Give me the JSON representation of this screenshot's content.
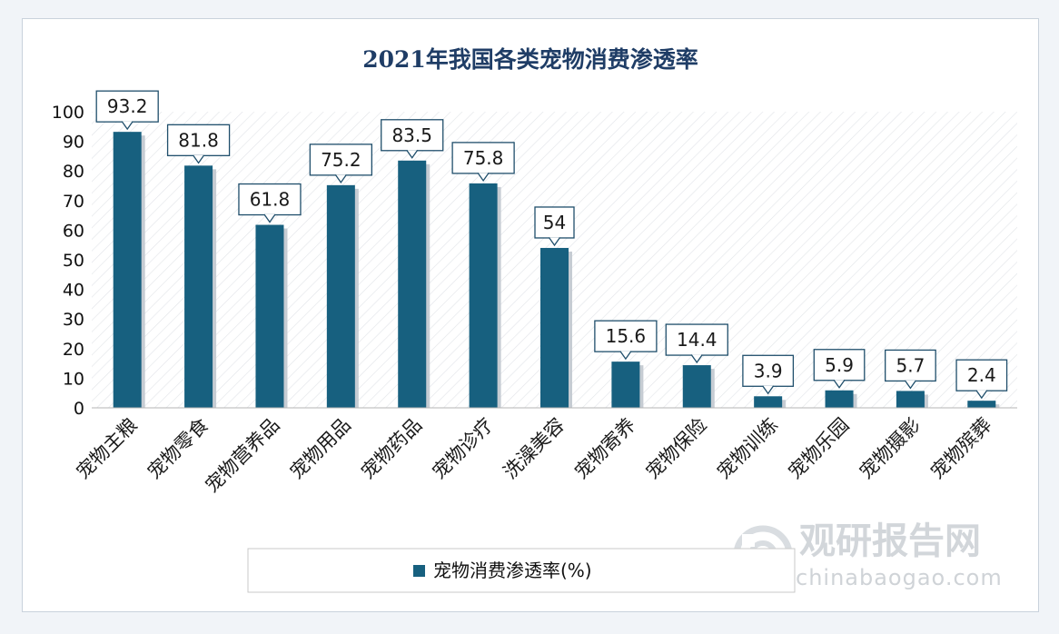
{
  "chart_data": {
    "type": "bar",
    "title": "2021年我国各类宠物消费渗透率",
    "categories": [
      "宠物主粮",
      "宠物零食",
      "宠物营养品",
      "宠物用品",
      "宠物药品",
      "宠物诊疗",
      "洗澡美容",
      "宠物寄养",
      "宠物保险",
      "宠物训练",
      "宠物乐园",
      "宠物摄影",
      "宠物殡葬"
    ],
    "series": [
      {
        "name": "宠物消费渗透率(%)",
        "values": [
          93.2,
          81.8,
          61.8,
          75.2,
          83.5,
          75.8,
          54,
          15.6,
          14.4,
          3.9,
          5.9,
          5.7,
          2.4
        ],
        "labels": [
          "93.2",
          "81.8",
          "61.8",
          "75.2",
          "83.5",
          "75.8",
          "54",
          "15.6",
          "14.4",
          "3.9",
          "5.9",
          "5.7",
          "2.4"
        ],
        "color": "#17607f"
      }
    ],
    "ylim": [
      0,
      100
    ],
    "yticks": [
      0,
      10,
      20,
      30,
      40,
      50,
      60,
      70,
      80,
      90,
      100
    ],
    "grid": false,
    "legend_position": "bottom"
  },
  "watermark": {
    "name_cn": "观研报告网",
    "domain": "chinabaogao.com"
  }
}
